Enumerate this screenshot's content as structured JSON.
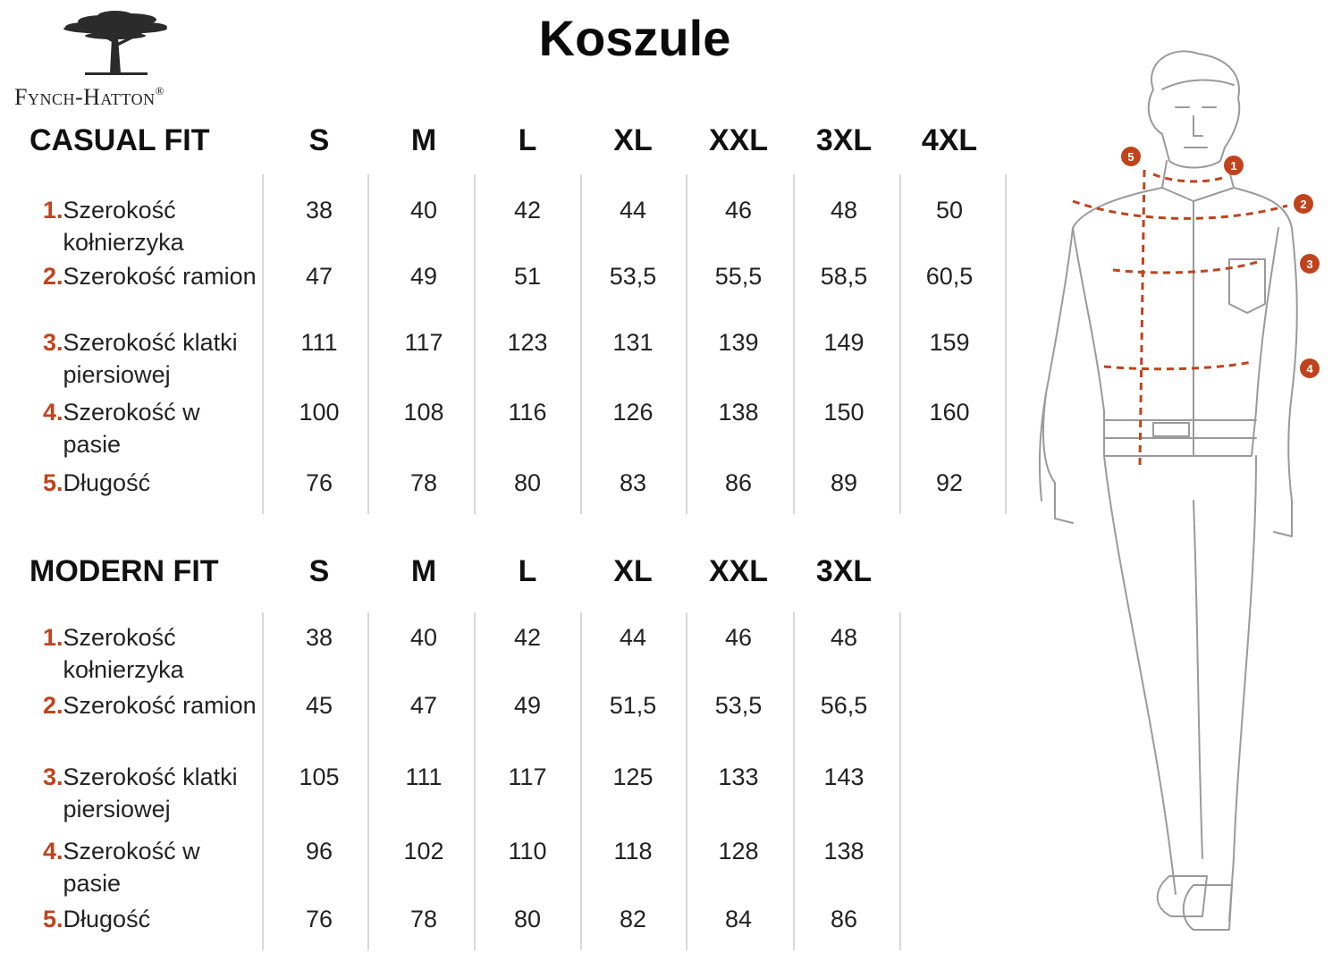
{
  "brand": {
    "name": "Fynch-Hatton",
    "reg": "®"
  },
  "title": "Koszule",
  "casual": {
    "title": "CASUAL FIT",
    "sizes": [
      "S",
      "M",
      "L",
      "XL",
      "XXL",
      "3XL",
      "4XL"
    ],
    "rows": [
      {
        "num": "1.",
        "label": "Szerokość kołnierzyka",
        "values": [
          "38",
          "40",
          "42",
          "44",
          "46",
          "48",
          "50"
        ]
      },
      {
        "num": "2.",
        "label": "Szerokość ramion",
        "values": [
          "47",
          "49",
          "51",
          "53,5",
          "55,5",
          "58,5",
          "60,5"
        ]
      },
      {
        "num": "3.",
        "label": "Szerokość klatki piersiowej",
        "values": [
          "111",
          "117",
          "123",
          "131",
          "139",
          "149",
          "159"
        ]
      },
      {
        "num": "4.",
        "label": "Szerokość w pasie",
        "values": [
          "100",
          "108",
          "116",
          "126",
          "138",
          "150",
          "160"
        ]
      },
      {
        "num": "5.",
        "label": "Długość",
        "values": [
          "76",
          "78",
          "80",
          "83",
          "86",
          "89",
          "92"
        ]
      }
    ]
  },
  "modern": {
    "title": "MODERN FIT",
    "sizes": [
      "S",
      "M",
      "L",
      "XL",
      "XXL",
      "3XL"
    ],
    "rows": [
      {
        "num": "1.",
        "label": "Szerokość kołnierzyka",
        "values": [
          "38",
          "40",
          "42",
          "44",
          "46",
          "48"
        ]
      },
      {
        "num": "2.",
        "label": "Szerokość ramion",
        "values": [
          "45",
          "47",
          "49",
          "51,5",
          "53,5",
          "56,5"
        ]
      },
      {
        "num": "3.",
        "label": "Szerokość klatki piersiowej",
        "values": [
          "105",
          "111",
          "117",
          "125",
          "133",
          "143"
        ]
      },
      {
        "num": "4.",
        "label": "Szerokość w pasie",
        "values": [
          "96",
          "102",
          "110",
          "118",
          "128",
          "138"
        ]
      },
      {
        "num": "5.",
        "label": "Długość",
        "values": [
          "76",
          "78",
          "80",
          "82",
          "84",
          "86"
        ]
      }
    ]
  },
  "figure": {
    "markers": [
      "1",
      "2",
      "3",
      "4",
      "5"
    ]
  },
  "colors": {
    "accent": "#c0431c",
    "line": "#d8d8d8",
    "text": "#222222"
  }
}
